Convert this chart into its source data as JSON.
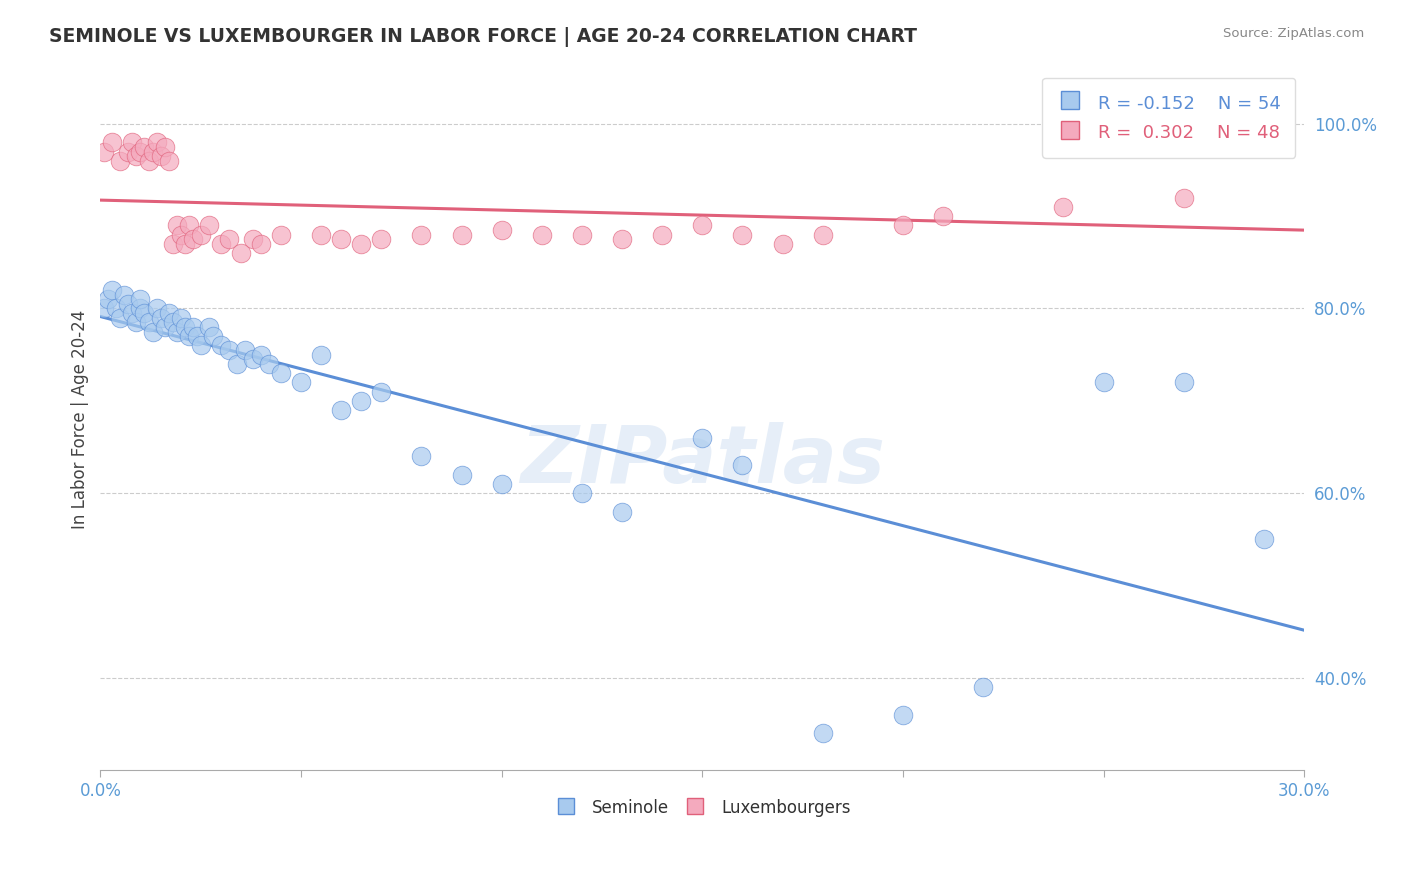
{
  "title": "SEMINOLE VS LUXEMBOURGER IN LABOR FORCE | AGE 20-24 CORRELATION CHART",
  "source_text": "Source: ZipAtlas.com",
  "ylabel": "In Labor Force | Age 20-24",
  "xlim": [
    0.0,
    0.3
  ],
  "ylim": [
    0.3,
    1.06
  ],
  "xticks": [
    0.0,
    0.05,
    0.1,
    0.15,
    0.2,
    0.25,
    0.3
  ],
  "xticklabels": [
    "0.0%",
    "",
    "",
    "",
    "",
    "",
    "30.0%"
  ],
  "yticks": [
    0.4,
    0.6,
    0.8,
    1.0
  ],
  "yticklabels": [
    "40.0%",
    "60.0%",
    "80.0%",
    "100.0%"
  ],
  "legend_r_blue": "R = -0.152",
  "legend_n_blue": "N = 54",
  "legend_r_pink": "R =  0.302",
  "legend_n_pink": "N = 48",
  "blue_color": "#A8CAEE",
  "pink_color": "#F4AABE",
  "blue_line_color": "#5B8ED6",
  "pink_line_color": "#E0607A",
  "watermark": "ZIPatlas",
  "seminole_x": [
    0.001,
    0.002,
    0.003,
    0.004,
    0.005,
    0.006,
    0.007,
    0.008,
    0.009,
    0.01,
    0.01,
    0.011,
    0.012,
    0.013,
    0.014,
    0.015,
    0.016,
    0.017,
    0.018,
    0.019,
    0.02,
    0.021,
    0.022,
    0.023,
    0.024,
    0.025,
    0.027,
    0.028,
    0.03,
    0.032,
    0.034,
    0.036,
    0.038,
    0.04,
    0.042,
    0.045,
    0.05,
    0.055,
    0.06,
    0.065,
    0.07,
    0.08,
    0.09,
    0.1,
    0.12,
    0.13,
    0.15,
    0.16,
    0.18,
    0.2,
    0.22,
    0.25,
    0.27,
    0.29
  ],
  "seminole_y": [
    0.8,
    0.81,
    0.82,
    0.8,
    0.79,
    0.815,
    0.805,
    0.795,
    0.785,
    0.8,
    0.81,
    0.795,
    0.785,
    0.775,
    0.8,
    0.79,
    0.78,
    0.795,
    0.785,
    0.775,
    0.79,
    0.78,
    0.77,
    0.78,
    0.77,
    0.76,
    0.78,
    0.77,
    0.76,
    0.755,
    0.74,
    0.755,
    0.745,
    0.75,
    0.74,
    0.73,
    0.72,
    0.75,
    0.69,
    0.7,
    0.71,
    0.64,
    0.62,
    0.61,
    0.6,
    0.58,
    0.66,
    0.63,
    0.34,
    0.36,
    0.39,
    0.72,
    0.72,
    0.55
  ],
  "luxembourger_x": [
    0.001,
    0.003,
    0.005,
    0.007,
    0.008,
    0.009,
    0.01,
    0.011,
    0.012,
    0.013,
    0.014,
    0.015,
    0.016,
    0.017,
    0.018,
    0.019,
    0.02,
    0.021,
    0.022,
    0.023,
    0.025,
    0.027,
    0.03,
    0.032,
    0.035,
    0.038,
    0.04,
    0.045,
    0.055,
    0.06,
    0.065,
    0.07,
    0.08,
    0.09,
    0.1,
    0.11,
    0.12,
    0.13,
    0.14,
    0.15,
    0.16,
    0.17,
    0.18,
    0.2,
    0.21,
    0.24,
    0.27,
    0.29
  ],
  "luxembourger_y": [
    0.97,
    0.98,
    0.96,
    0.97,
    0.98,
    0.965,
    0.97,
    0.975,
    0.96,
    0.97,
    0.98,
    0.965,
    0.975,
    0.96,
    0.87,
    0.89,
    0.88,
    0.87,
    0.89,
    0.875,
    0.88,
    0.89,
    0.87,
    0.875,
    0.86,
    0.875,
    0.87,
    0.88,
    0.88,
    0.875,
    0.87,
    0.875,
    0.88,
    0.88,
    0.885,
    0.88,
    0.88,
    0.875,
    0.88,
    0.89,
    0.88,
    0.87,
    0.88,
    0.89,
    0.9,
    0.91,
    0.92,
    1.01
  ]
}
